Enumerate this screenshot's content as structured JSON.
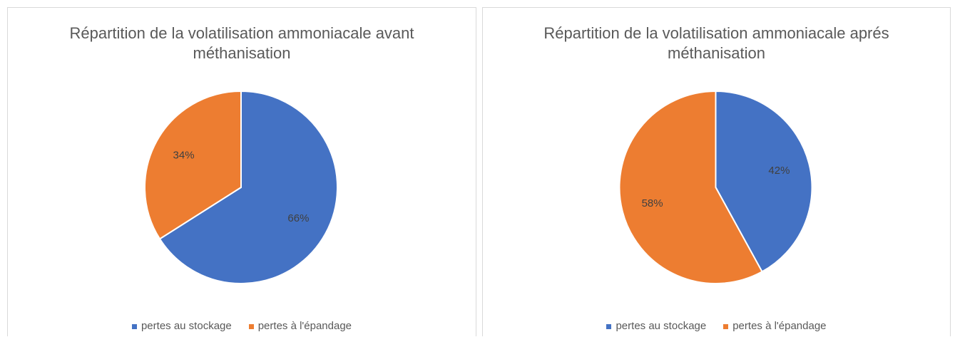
{
  "chart_data": [
    {
      "type": "pie",
      "title": "Répartition de la volatilisation ammoniacale avant méthanisation",
      "labels": [
        "pertes au stockage",
        "pertes à l'épandage"
      ],
      "values": [
        66,
        34
      ],
      "value_labels": [
        "66%",
        "34%"
      ],
      "colors": [
        "#4472c4",
        "#ed7d31"
      ],
      "legend": "bottom"
    },
    {
      "type": "pie",
      "title": "Répartition de la volatilisation ammoniacale aprés méthanisation",
      "labels": [
        "pertes au stockage",
        "pertes à l'épandage"
      ],
      "values": [
        42,
        58
      ],
      "value_labels": [
        "42%",
        "58%"
      ],
      "colors": [
        "#4472c4",
        "#ed7d31"
      ],
      "legend": "bottom"
    }
  ]
}
